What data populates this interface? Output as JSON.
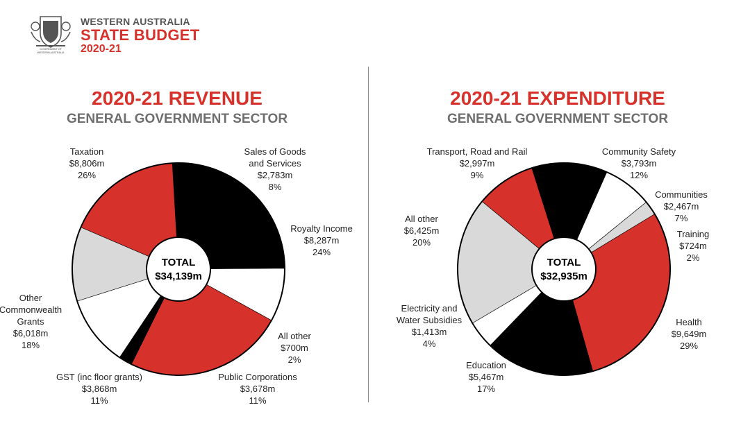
{
  "header": {
    "line1": "WESTERN AUSTRALIA",
    "line2": "STATE BUDGET",
    "line3": "2020-21",
    "crest_caption_1": "GOVERNMENT OF",
    "crest_caption_2": "WESTERN AUSTRALIA",
    "logo_icon": "wa-coat-of-arms-icon"
  },
  "colors": {
    "red": "#d6322b",
    "black": "#000000",
    "white": "#ffffff",
    "grey": "#d9d9d9",
    "title_red": "#d6322b",
    "subtitle_grey": "#6e6e6e"
  },
  "chart_data": [
    {
      "type": "pie",
      "title": "2020-21 REVENUE",
      "subtitle": "GENERAL GOVERNMENT SECTOR",
      "total_label": "TOTAL",
      "total_value": "$34,139m",
      "slices": [
        {
          "name": "Taxation",
          "value": 8806,
          "value_label": "$8,806m",
          "percent": "26%",
          "color": "#000000"
        },
        {
          "name": "Sales of Goods and Services",
          "label_lines": [
            "Sales of Goods",
            "and Services"
          ],
          "value": 2783,
          "value_label": "$2,783m",
          "percent": "8%",
          "color": "#ffffff"
        },
        {
          "name": "Royalty Income",
          "value": 8287,
          "value_label": "$8,287m",
          "percent": "24%",
          "color": "#d6322b"
        },
        {
          "name": "All other",
          "value": 700,
          "value_label": "$700m",
          "percent": "2%",
          "color": "#000000"
        },
        {
          "name": "Public Corporations",
          "value": 3678,
          "value_label": "$3,678m",
          "percent": "11%",
          "color": "#ffffff"
        },
        {
          "name": "GST (inc floor grants)",
          "value": 3868,
          "value_label": "$3,868m",
          "percent": "11%",
          "color": "#d9d9d9"
        },
        {
          "name": "Other Commonwealth Grants",
          "label_lines": [
            "Other",
            "Commonwealth",
            "Grants"
          ],
          "value": 6018,
          "value_label": "$6,018m",
          "percent": "18%",
          "color": "#d6322b"
        }
      ]
    },
    {
      "type": "pie",
      "title": "2020-21 EXPENDITURE",
      "subtitle": "GENERAL GOVERNMENT SECTOR",
      "total_label": "TOTAL",
      "total_value": "$32,935m",
      "slices": [
        {
          "name": "Community Safety",
          "value": 3793,
          "value_label": "$3,793m",
          "percent": "12%",
          "color": "#000000"
        },
        {
          "name": "Communities",
          "value": 2467,
          "value_label": "$2,467m",
          "percent": "7%",
          "color": "#ffffff"
        },
        {
          "name": "Training",
          "value": 724,
          "value_label": "$724m",
          "percent": "2%",
          "color": "#d9d9d9"
        },
        {
          "name": "Health",
          "value": 9649,
          "value_label": "$9,649m",
          "percent": "29%",
          "color": "#d6322b"
        },
        {
          "name": "Education",
          "value": 5467,
          "value_label": "$5,467m",
          "percent": "17%",
          "color": "#000000"
        },
        {
          "name": "Electricity and Water Subsidies",
          "label_lines": [
            "Electricity and",
            "Water Subsidies"
          ],
          "value": 1413,
          "value_label": "$1,413m",
          "percent": "4%",
          "color": "#ffffff"
        },
        {
          "name": "All other",
          "value": 6425,
          "value_label": "$6,425m",
          "percent": "20%",
          "color": "#d9d9d9"
        },
        {
          "name": "Transport, Road and Rail",
          "value": 2997,
          "value_label": "$2,997m",
          "percent": "9%",
          "color": "#d6322b"
        }
      ]
    }
  ]
}
